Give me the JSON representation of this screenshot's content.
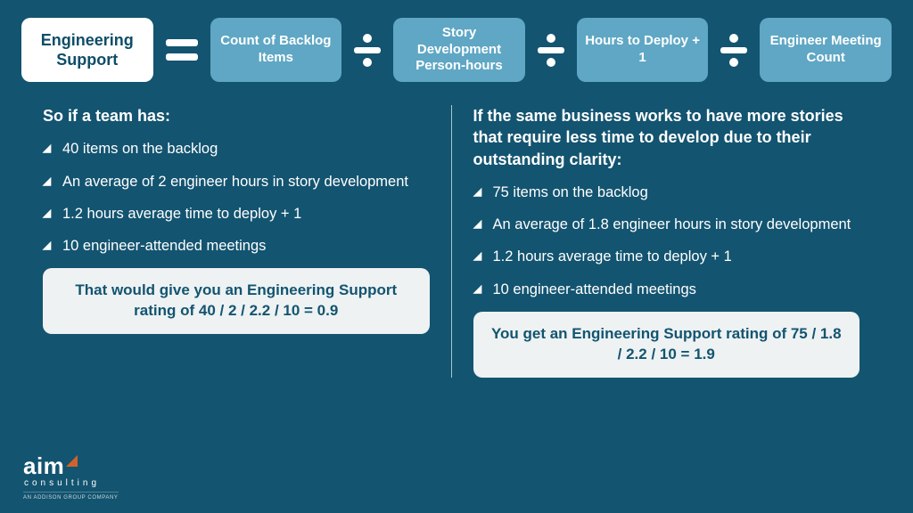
{
  "colors": {
    "background": "#135470",
    "box_term_bg": "#5fa7c4",
    "box_main_bg": "#ffffff",
    "box_main_text": "#0f4d68",
    "result_bg": "#eef2f3",
    "result_text": "#135470",
    "accent_orange": "#d1622a"
  },
  "formula": {
    "main": "Engineering Support",
    "terms": [
      "Count of Backlog Items",
      "Story Development Person-hours",
      "Hours to Deploy + 1",
      "Engineer Meeting Count"
    ]
  },
  "left": {
    "heading": "So if a team has:",
    "items": [
      "40 items on the backlog",
      "An average of 2 engineer hours in story development",
      "1.2 hours average time to deploy + 1",
      "10 engineer-attended meetings"
    ],
    "result": "That would give you an Engineering Support rating of 40 / 2 / 2.2 / 10 = 0.9"
  },
  "right": {
    "heading": "If the same business works to have more stories that require less time to develop due to their outstanding clarity:",
    "items": [
      "75 items on the backlog",
      "An average of 1.8 engineer hours in story development",
      "1.2 hours average time to deploy + 1",
      "10 engineer-attended meetings"
    ],
    "result": "You get an Engineering Support rating of 75 / 1.8 / 2.2 / 10 = 1.9"
  },
  "logo": {
    "name": "aim",
    "sub": "consulting",
    "tag": "AN ADDISON GROUP COMPANY"
  }
}
